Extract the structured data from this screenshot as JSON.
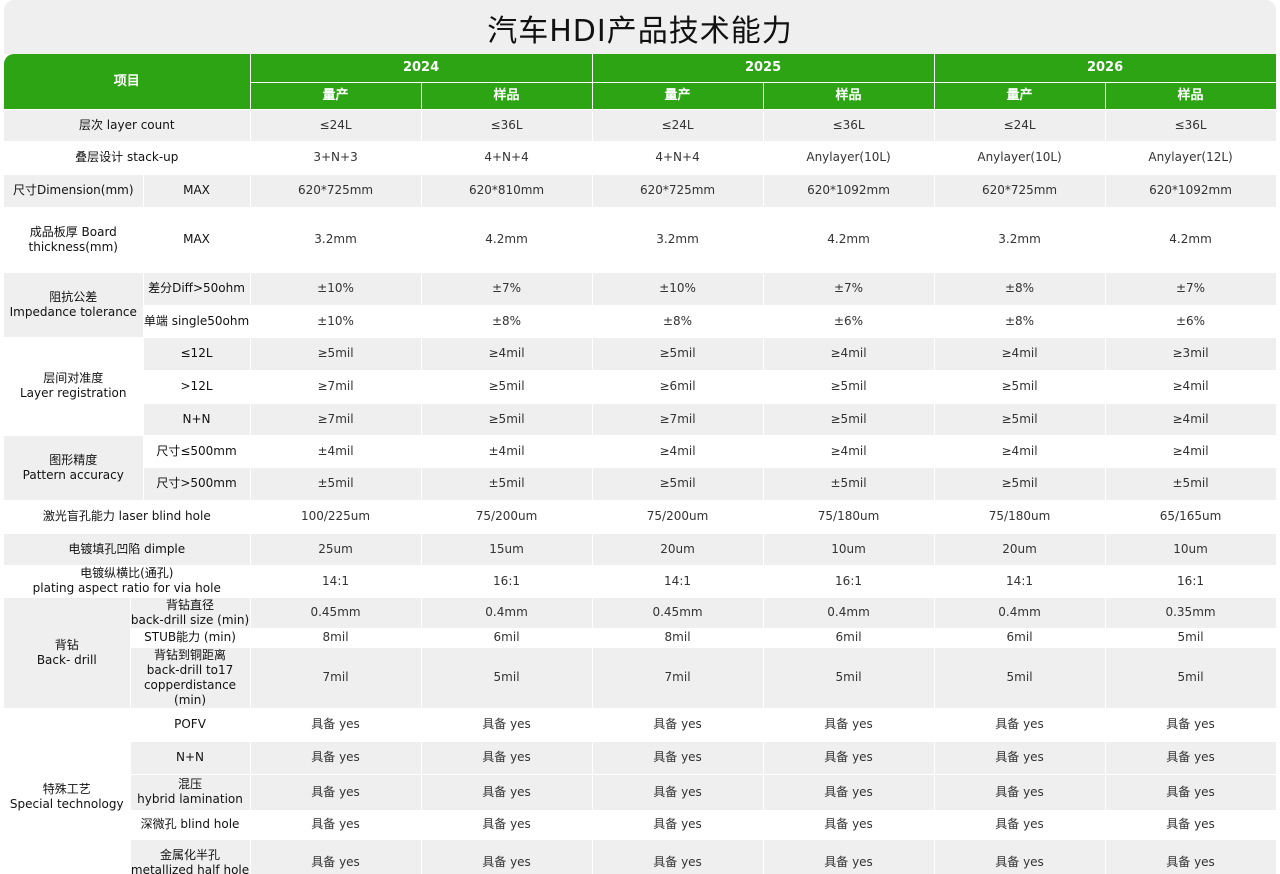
{
  "title": "汽车HDI产品技术能力",
  "header": {
    "item": "项目",
    "years": [
      "2024",
      "2025",
      "2026"
    ],
    "sub": [
      "量产",
      "样品"
    ]
  },
  "groups": [
    "阻抗公差\nImpedance tolerance",
    "层间对准度\nLayer registration",
    "图形精度\nPattern accuracy",
    "背钻\nBack- drill",
    "特殊工艺\nSpecial  technology"
  ],
  "rows": [
    {
      "item": "层次  layer count",
      "values": [
        "≤24L",
        "≤36L",
        "≤24L",
        "≤36L",
        "≤24L",
        "≤36L"
      ]
    },
    {
      "item": "叠层设计 stack-up",
      "values": [
        "3+N+3",
        "4+N+4",
        "4+N+4",
        "Anylayer(10L)",
        "Anylayer(10L)",
        "Anylayer(12L)"
      ]
    },
    {
      "item": "尺寸Dimension(mm)",
      "sub": "MAX",
      "values": [
        "620*725mm",
        "620*810mm",
        "620*725mm",
        "620*1092mm",
        "620*725mm",
        "620*1092mm"
      ]
    },
    {
      "item": "成品板厚 Board\nthickness(mm)",
      "sub": "MAX",
      "values": [
        "3.2mm",
        "4.2mm",
        "3.2mm",
        "4.2mm",
        "3.2mm",
        "4.2mm"
      ]
    },
    {
      "sub": "差分Diff>50ohm",
      "values": [
        "±10%",
        "±7%",
        "±10%",
        "±7%",
        "±8%",
        "±7%"
      ]
    },
    {
      "sub": "单端 single50ohm",
      "values": [
        "±10%",
        "±8%",
        "±8%",
        "±6%",
        "±8%",
        "±6%"
      ]
    },
    {
      "sub": "≤12L",
      "values": [
        "≥5mil",
        "≥4mil",
        "≥5mil",
        "≥4mil",
        "≥4mil",
        "≥3mil"
      ]
    },
    {
      "sub": ">12L",
      "values": [
        "≥7mil",
        "≥5mil",
        "≥6mil",
        "≥5mil",
        "≥5mil",
        "≥4mil"
      ]
    },
    {
      "sub": "N+N",
      "values": [
        "≥7mil",
        "≥5mil",
        "≥7mil",
        "≥5mil",
        "≥5mil",
        "≥4mil"
      ]
    },
    {
      "sub": "尺寸≤500mm",
      "values": [
        "±4mil",
        "±4mil",
        "≥4mil",
        "≥4mil",
        "≥4mil",
        "≥4mil"
      ]
    },
    {
      "sub": "尺寸>500mm",
      "values": [
        "±5mil",
        "±5mil",
        "≥5mil",
        "±5mil",
        "≥5mil",
        "±5mil"
      ]
    },
    {
      "item": "激光盲孔能力 laser blind hole",
      "values": [
        "100/225um",
        "75/200um",
        "75/200um",
        "75/180um",
        "75/180um",
        "65/165um"
      ]
    },
    {
      "item": "电镀填孔凹陷 dimple",
      "values": [
        "25um",
        "15um",
        "20um",
        "10um",
        "20um",
        "10um"
      ]
    },
    {
      "item": "电镀纵横比(通孔)\nplating aspect ratio for via hole",
      "values": [
        "14:1",
        "16:1",
        "14:1",
        "16:1",
        "14:1",
        "16:1"
      ]
    },
    {
      "sub": "背钻直径\nback-drill size (min)",
      "values": [
        "0.45mm",
        "0.4mm",
        "0.45mm",
        "0.4mm",
        "0.4mm",
        "0.35mm"
      ]
    },
    {
      "sub": "STUB能力 (min)",
      "values": [
        "8mil",
        "6mil",
        "8mil",
        "6mil",
        "6mil",
        "5mil"
      ]
    },
    {
      "sub": "背钻到铜距离\nback-drill to17\ncopperdistance (min)",
      "values": [
        "7mil",
        "5mil",
        "7mil",
        "5mil",
        "5mil",
        "5mil"
      ]
    },
    {
      "sub": "POFV",
      "values": [
        "具备 yes",
        "具备 yes",
        "具备 yes",
        "具备 yes",
        "具备 yes",
        "具备 yes"
      ]
    },
    {
      "sub": "N+N",
      "values": [
        "具备 yes",
        "具备 yes",
        "具备 yes",
        "具备 yes",
        "具备 yes",
        "具备 yes"
      ]
    },
    {
      "sub": "混压\nhybrid lamination",
      "values": [
        "具备 yes",
        "具备 yes",
        "具备 yes",
        "具备 yes",
        "具备 yes",
        "具备 yes"
      ]
    },
    {
      "sub": "深微孔 blind hole",
      "values": [
        "具备 yes",
        "具备 yes",
        "具备 yes",
        "具备 yes",
        "具备 yes",
        "具备 yes"
      ]
    },
    {
      "sub": "金属化半孔\nmetallized half hole",
      "values": [
        "具备 yes",
        "具备 yes",
        "具备 yes",
        "具备 yes",
        "具备 yes",
        "具备 yes"
      ]
    }
  ]
}
